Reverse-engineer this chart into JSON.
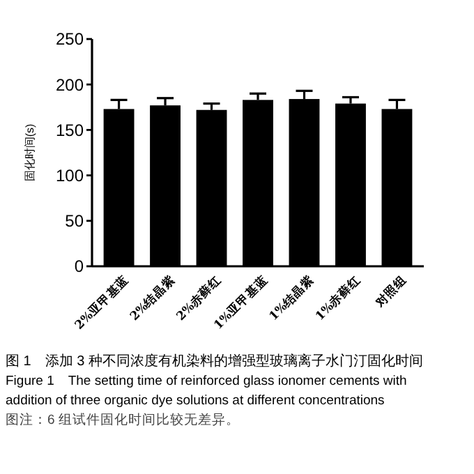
{
  "chart_data": {
    "type": "bar",
    "title": "图 1　添加 3 种不同浓度有机染料的增强型玻璃离子水门汀固化时间",
    "subtitle": "Figure 1　The setting time of reinforced glass ionomer cements with addition of three organic dye solutions at different concentrations",
    "annotations": [
      "图注：6 组试件固化时间比较无差异。"
    ],
    "ylabel": "固化时间(s)",
    "categories": [
      "2%亚甲基蓝",
      "2%结晶紫",
      "2%赤藓红",
      "1%亚甲基蓝",
      "1%结晶紫",
      "1%赤藓红",
      "对照组"
    ],
    "values": [
      173,
      177,
      172,
      183,
      184,
      179,
      173
    ],
    "errors": [
      [
        173,
        183
      ],
      [
        177,
        185
      ],
      [
        172,
        179
      ],
      [
        183,
        190
      ],
      [
        184,
        193
      ],
      [
        179,
        186
      ],
      [
        173,
        183
      ]
    ],
    "color": "#000000",
    "ylim": [
      0,
      250
    ],
    "yticks": [
      0,
      50,
      100,
      150,
      200,
      250
    ],
    "grid": false
  }
}
